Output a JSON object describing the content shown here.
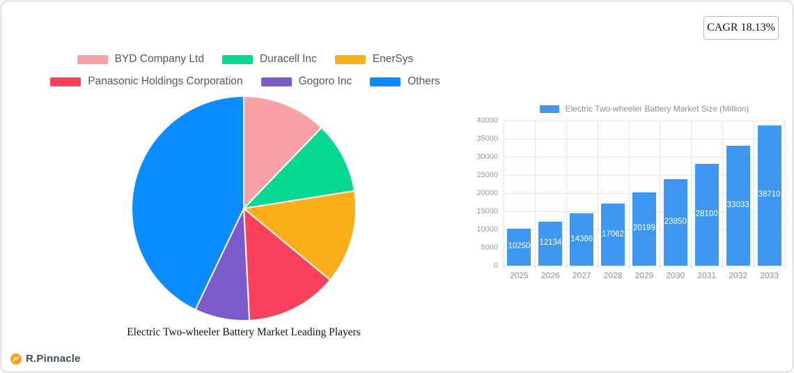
{
  "badge": {
    "cagr": "CAGR 18.13%"
  },
  "branding": {
    "name": "R.Pinnacle",
    "icon": "pinnacle-circle-icon",
    "icon_color": "#F6A01D",
    "text_color": "#414B5A"
  },
  "chart_data": [
    {
      "type": "pie",
      "title": "Electric Two-wheeler Battery Market Leading Players",
      "legend_position": "top",
      "direction": "clockwise",
      "start_angle_deg": 0,
      "labels": [
        "BYD Company Ltd",
        "Duracell Inc",
        "EnerSys",
        "Panasonic Holdings Corporation",
        "Gogoro Inc",
        "Others"
      ],
      "values": [
        12.2,
        10.3,
        13.5,
        13.2,
        7.9,
        42.9
      ],
      "note": "percent share estimated from slice angles",
      "colors": [
        "#F8A2A8",
        "#05D893",
        "#FBAE17",
        "#FB415C",
        "#7B5BCC",
        "#0A8CFE"
      ],
      "slice_border_color": "#ffffff"
    },
    {
      "type": "bar",
      "legend": "Electric Two-wheeler Battery Market Size (Million)",
      "categories": [
        "2025",
        "2026",
        "2027",
        "2028",
        "2029",
        "2030",
        "2031",
        "2032",
        "2033"
      ],
      "values": [
        10250,
        12134,
        14386,
        17062,
        20199,
        23850,
        28100,
        33033,
        38710
      ],
      "bar_color": "#3E98F2",
      "value_label_color": "#ffffff",
      "value_label_position": "inside-center",
      "xlabel": "",
      "ylabel": "",
      "ylim": [
        0,
        40000
      ],
      "yticks": [
        0,
        5000,
        10000,
        15000,
        20000,
        25000,
        30000,
        35000,
        40000
      ],
      "grid": true,
      "axis_text_color": "#8F8F8F"
    }
  ]
}
